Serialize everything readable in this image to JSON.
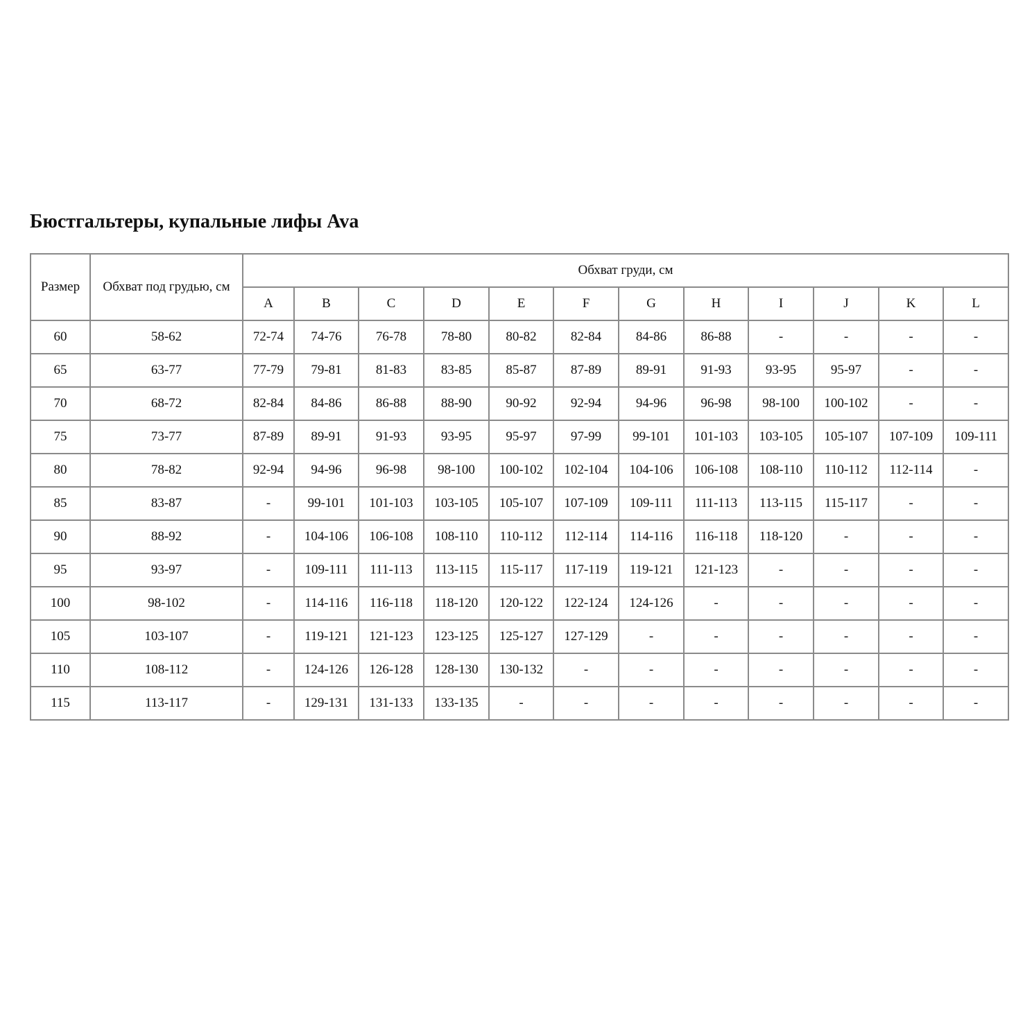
{
  "title": "Бюстгальтеры, купальные лифы Ava",
  "table": {
    "header_size": "Размер",
    "header_underbust": "Обхват под грудью, см",
    "header_bust": "Обхват груди, см",
    "cups": [
      "A",
      "B",
      "C",
      "D",
      "E",
      "F",
      "G",
      "H",
      "I",
      "J",
      "K",
      "L"
    ],
    "rows": [
      {
        "size": "60",
        "underbust": "58-62",
        "values": [
          "72-74",
          "74-76",
          "76-78",
          "78-80",
          "80-82",
          "82-84",
          "84-86",
          "86-88",
          "-",
          "-",
          "-",
          "-"
        ]
      },
      {
        "size": "65",
        "underbust": "63-77",
        "values": [
          "77-79",
          "79-81",
          "81-83",
          "83-85",
          "85-87",
          "87-89",
          "89-91",
          "91-93",
          "93-95",
          "95-97",
          "-",
          "-"
        ]
      },
      {
        "size": "70",
        "underbust": "68-72",
        "values": [
          "82-84",
          "84-86",
          "86-88",
          "88-90",
          "90-92",
          "92-94",
          "94-96",
          "96-98",
          "98-100",
          "100-102",
          "-",
          "-"
        ]
      },
      {
        "size": "75",
        "underbust": "73-77",
        "values": [
          "87-89",
          "89-91",
          "91-93",
          "93-95",
          "95-97",
          "97-99",
          "99-101",
          "101-103",
          "103-105",
          "105-107",
          "107-109",
          "109-111"
        ]
      },
      {
        "size": "80",
        "underbust": "78-82",
        "values": [
          "92-94",
          "94-96",
          "96-98",
          "98-100",
          "100-102",
          "102-104",
          "104-106",
          "106-108",
          "108-110",
          "110-112",
          "112-114",
          "-"
        ]
      },
      {
        "size": "85",
        "underbust": "83-87",
        "values": [
          "-",
          "99-101",
          "101-103",
          "103-105",
          "105-107",
          "107-109",
          "109-111",
          "111-113",
          "113-115",
          "115-117",
          "-",
          "-"
        ]
      },
      {
        "size": "90",
        "underbust": "88-92",
        "values": [
          "-",
          "104-106",
          "106-108",
          "108-110",
          "110-112",
          "112-114",
          "114-116",
          "116-118",
          "118-120",
          "-",
          "-",
          "-"
        ]
      },
      {
        "size": "95",
        "underbust": "93-97",
        "values": [
          "-",
          "109-111",
          "111-113",
          "113-115",
          "115-117",
          "117-119",
          "119-121",
          "121-123",
          "-",
          "-",
          "-",
          "-"
        ]
      },
      {
        "size": "100",
        "underbust": "98-102",
        "values": [
          "-",
          "114-116",
          "116-118",
          "118-120",
          "120-122",
          "122-124",
          "124-126",
          "-",
          "-",
          "-",
          "-",
          "-"
        ]
      },
      {
        "size": "105",
        "underbust": "103-107",
        "values": [
          "-",
          "119-121",
          "121-123",
          "123-125",
          "125-127",
          "127-129",
          "-",
          "-",
          "-",
          "-",
          "-",
          "-"
        ]
      },
      {
        "size": "110",
        "underbust": "108-112",
        "values": [
          "-",
          "124-126",
          "126-128",
          "128-130",
          "130-132",
          "-",
          "-",
          "-",
          "-",
          "-",
          "-",
          "-"
        ]
      },
      {
        "size": "115",
        "underbust": "113-117",
        "values": [
          "-",
          "129-131",
          "131-133",
          "133-135",
          "-",
          "-",
          "-",
          "-",
          "-",
          "-",
          "-",
          "-"
        ]
      }
    ]
  }
}
